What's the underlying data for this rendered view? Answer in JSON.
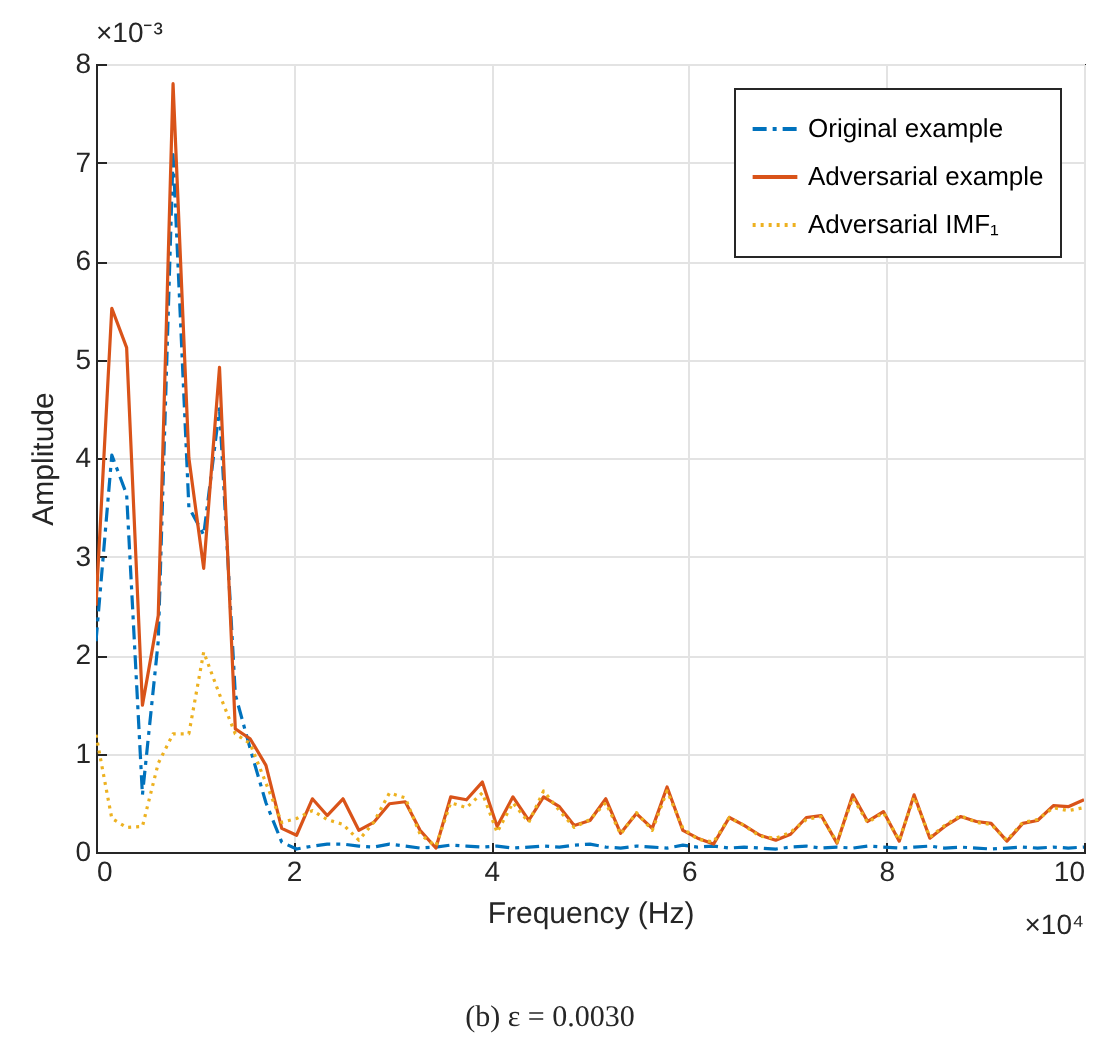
{
  "chart_data": {
    "type": "line",
    "xlabel": "Frequency (Hz)",
    "ylabel": "Amplitude",
    "x": [
      0,
      0.16,
      0.31,
      0.47,
      0.63,
      0.78,
      0.94,
      1.09,
      1.25,
      1.41,
      1.56,
      1.72,
      1.88,
      2.03,
      2.19,
      2.34,
      2.5,
      2.66,
      2.81,
      2.97,
      3.13,
      3.28,
      3.44,
      3.59,
      3.75,
      3.91,
      4.06,
      4.22,
      4.38,
      4.53,
      4.69,
      4.84,
      5,
      5.16,
      5.31,
      5.47,
      5.63,
      5.78,
      5.94,
      6.09,
      6.25,
      6.41,
      6.56,
      6.72,
      6.88,
      7.03,
      7.19,
      7.34,
      7.5,
      7.66,
      7.81,
      7.97,
      8.13,
      8.28,
      8.44,
      8.59,
      8.75,
      8.91,
      9.06,
      9.22,
      9.38,
      9.53,
      9.69,
      9.84,
      10
    ],
    "series": [
      {
        "name": "Original example",
        "color": "#0072bd",
        "line_style": "dashed",
        "values": [
          2.14,
          4.03,
          3.63,
          0.58,
          2.14,
          7.08,
          3.5,
          3.22,
          4.5,
          1.6,
          1.05,
          0.5,
          0.1,
          0.03,
          0.06,
          0.08,
          0.08,
          0.06,
          0.05,
          0.08,
          0.06,
          0.04,
          0.05,
          0.07,
          0.06,
          0.05,
          0.06,
          0.04,
          0.05,
          0.06,
          0.05,
          0.07,
          0.08,
          0.05,
          0.04,
          0.06,
          0.05,
          0.04,
          0.07,
          0.05,
          0.06,
          0.04,
          0.05,
          0.04,
          0.03,
          0.05,
          0.06,
          0.04,
          0.05,
          0.04,
          0.06,
          0.05,
          0.04,
          0.05,
          0.06,
          0.04,
          0.05,
          0.04,
          0.03,
          0.04,
          0.05,
          0.04,
          0.05,
          0.04,
          0.05
        ]
      },
      {
        "name": "Adversarial example",
        "color": "#d95319",
        "line_style": "solid",
        "values": [
          2.5,
          5.52,
          5.12,
          1.49,
          2.4,
          7.8,
          4.0,
          2.88,
          4.92,
          1.25,
          1.15,
          0.88,
          0.24,
          0.17,
          0.54,
          0.37,
          0.54,
          0.22,
          0.3,
          0.49,
          0.51,
          0.22,
          0.04,
          0.56,
          0.53,
          0.71,
          0.26,
          0.56,
          0.32,
          0.56,
          0.46,
          0.27,
          0.32,
          0.54,
          0.19,
          0.39,
          0.24,
          0.66,
          0.22,
          0.14,
          0.08,
          0.35,
          0.27,
          0.17,
          0.12,
          0.18,
          0.35,
          0.37,
          0.09,
          0.58,
          0.31,
          0.41,
          0.11,
          0.58,
          0.14,
          0.26,
          0.36,
          0.31,
          0.29,
          0.11,
          0.29,
          0.32,
          0.47,
          0.46,
          0.53
        ]
      },
      {
        "name": "Adversarial IMF₁",
        "color": "#edb120",
        "line_style": "dotted",
        "values": [
          1.19,
          0.34,
          0.25,
          0.26,
          0.9,
          1.2,
          1.2,
          2.03,
          1.6,
          1.2,
          1.1,
          0.7,
          0.3,
          0.34,
          0.42,
          0.33,
          0.28,
          0.12,
          0.3,
          0.6,
          0.55,
          0.18,
          0.06,
          0.5,
          0.45,
          0.6,
          0.2,
          0.5,
          0.3,
          0.62,
          0.42,
          0.25,
          0.33,
          0.5,
          0.18,
          0.4,
          0.22,
          0.62,
          0.24,
          0.13,
          0.1,
          0.35,
          0.27,
          0.16,
          0.14,
          0.2,
          0.33,
          0.36,
          0.1,
          0.55,
          0.3,
          0.4,
          0.12,
          0.56,
          0.15,
          0.27,
          0.37,
          0.3,
          0.28,
          0.12,
          0.3,
          0.33,
          0.45,
          0.42,
          0.45
        ]
      }
    ],
    "xlim": [
      0,
      10
    ],
    "xticks": [
      0,
      2,
      4,
      6,
      8,
      10
    ],
    "ylim": [
      0,
      8
    ],
    "yticks": [
      0,
      1,
      2,
      3,
      4,
      5,
      6,
      7,
      8
    ],
    "grid": true,
    "legend": "top right",
    "marker": "none",
    "annotations": [
      "×10⁻³",
      "×10⁴",
      "(b) ε = 0.0030"
    ]
  }
}
